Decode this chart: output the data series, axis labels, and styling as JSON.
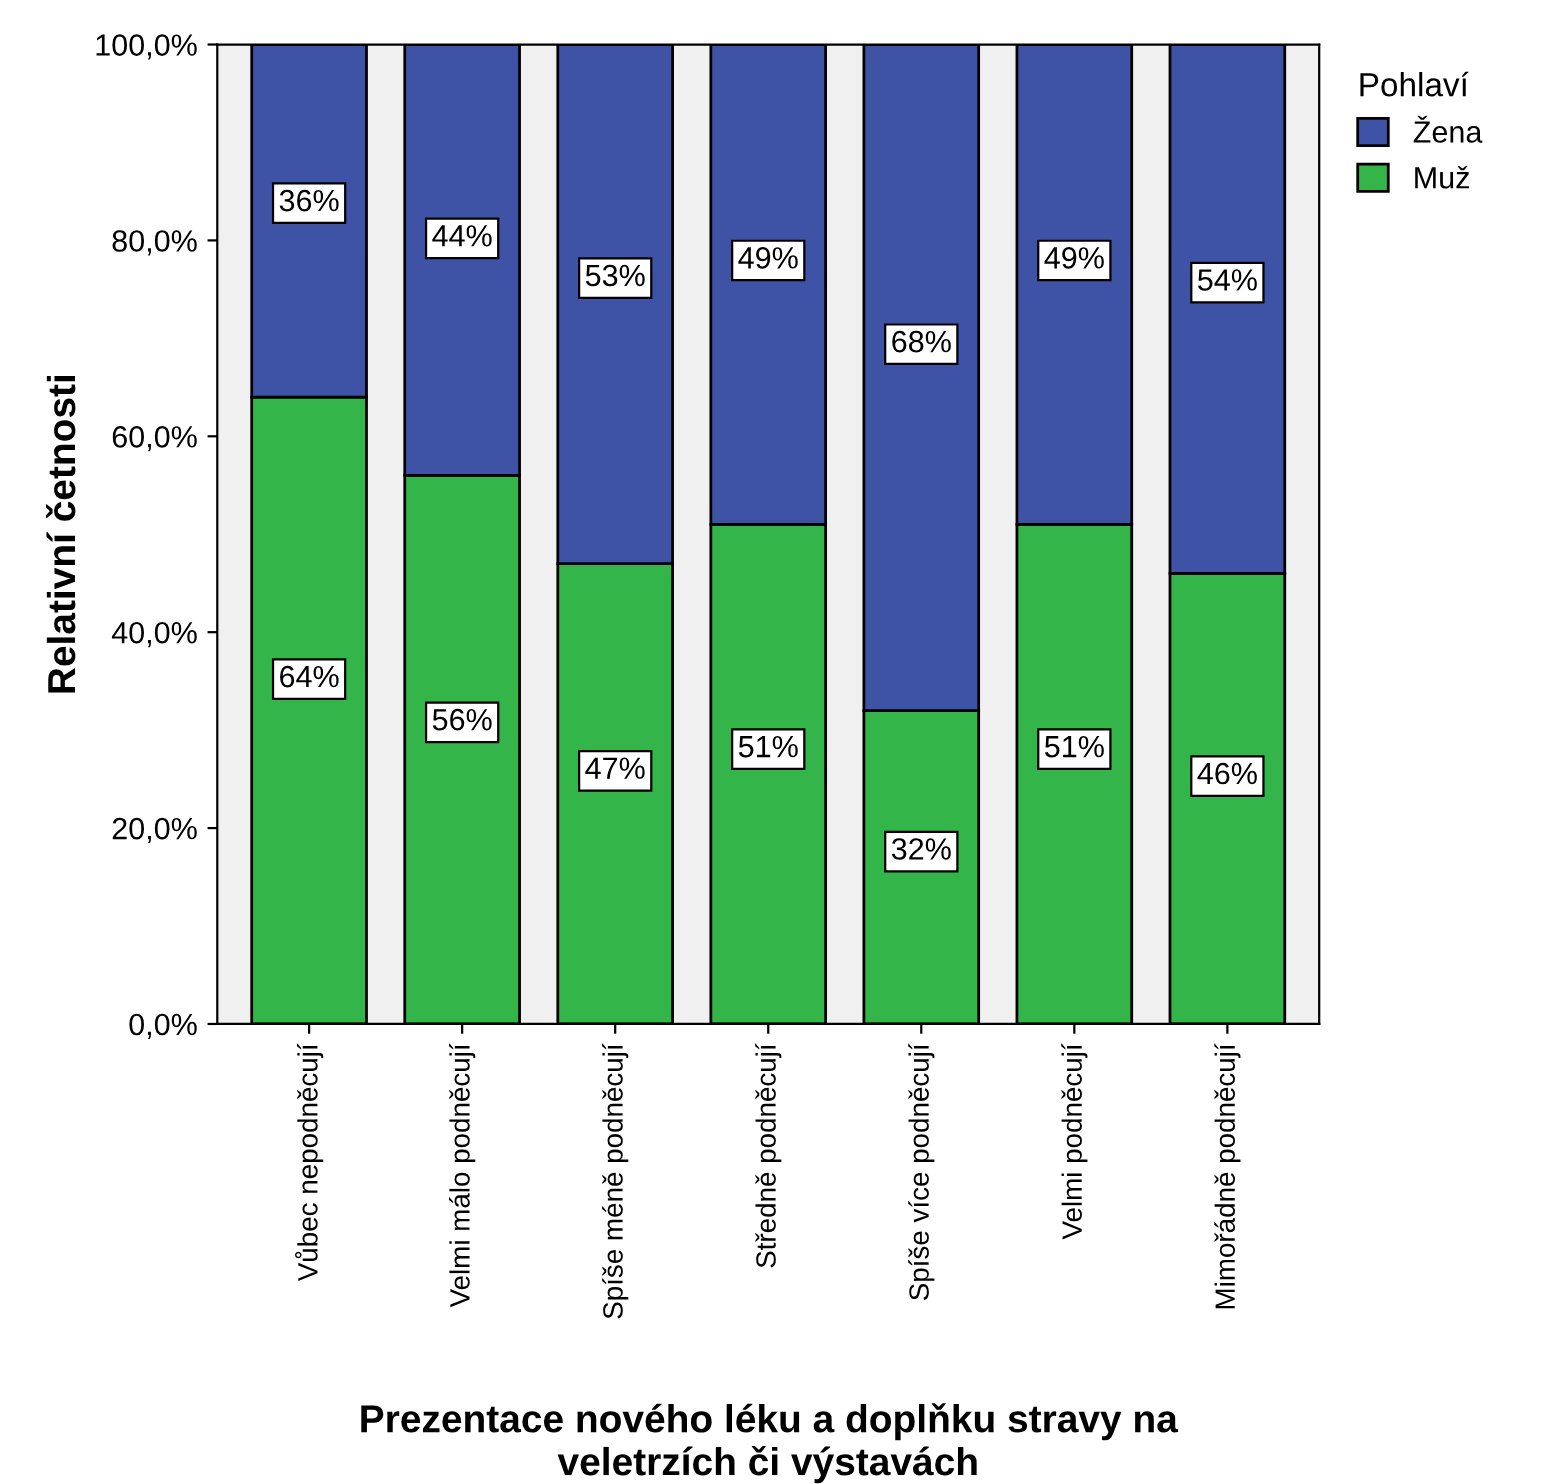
{
  "chart_data": {
    "type": "bar",
    "stacked": true,
    "xlabel": "Prezentace nového léku a doplňku stravy na\nveletrzích či výstavách",
    "ylabel": "Relativní četnosti",
    "legend_title": "Pohlaví",
    "legend": "right",
    "categories": [
      "Vůbec nepodněcují",
      "Velmi málo podněcují",
      "Spíše méně podněcují",
      "Středně podněcují",
      "Spíše více podněcují",
      "Velmi podněcují",
      "Mimořádně podněcují"
    ],
    "series": [
      {
        "name": "Muž",
        "color": "#33b54a",
        "values": [
          64,
          56,
          47,
          51,
          32,
          51,
          46
        ],
        "value_labels": [
          "64%",
          "56%",
          "47%",
          "51%",
          "32%",
          "51%",
          "46%"
        ]
      },
      {
        "name": "Žena",
        "color": "#3e53a5",
        "values": [
          36,
          44,
          53,
          49,
          68,
          49,
          54
        ],
        "value_labels": [
          "36%",
          "44%",
          "53%",
          "49%",
          "68%",
          "49%",
          "54%"
        ]
      }
    ],
    "ylim": [
      0,
      100
    ],
    "yticks": [
      {
        "value": 0,
        "label": "0,0%"
      },
      {
        "value": 20,
        "label": "20,0%"
      },
      {
        "value": 40,
        "label": "40,0%"
      },
      {
        "value": 60,
        "label": "60,0%"
      },
      {
        "value": 80,
        "label": "80,0%"
      },
      {
        "value": 100,
        "label": "100,0%"
      }
    ],
    "grid": false
  }
}
